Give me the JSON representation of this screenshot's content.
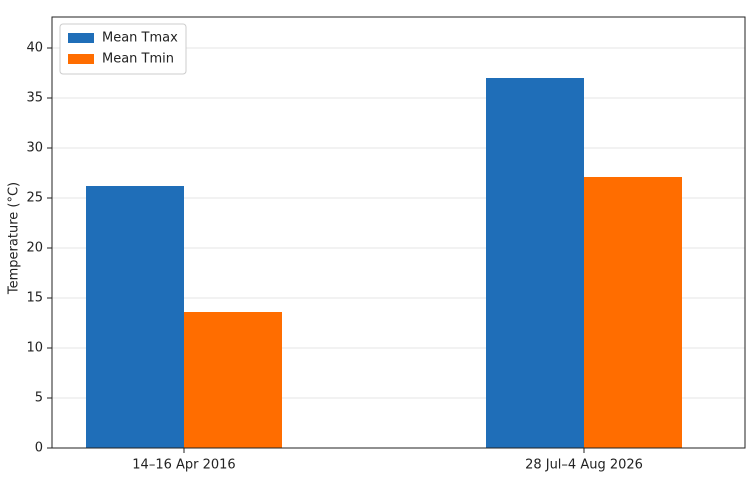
{
  "chart_data": {
    "type": "bar",
    "categories": [
      "14–16 Apr 2016",
      "28 Jul–4 Aug 2026"
    ],
    "series": [
      {
        "name": "Mean Tmax",
        "color": "#1f6eb8",
        "values": [
          26.2,
          37.0
        ]
      },
      {
        "name": "Mean Tmin",
        "color": "#ff6d00",
        "values": [
          13.6,
          27.1
        ]
      }
    ],
    "y_label": "Temperature (°C)",
    "ylim": [
      0,
      43.1
    ],
    "yticks": [
      0,
      5,
      10,
      15,
      20,
      25,
      30,
      35,
      40
    ],
    "grid": true,
    "legend": "upper-left"
  }
}
